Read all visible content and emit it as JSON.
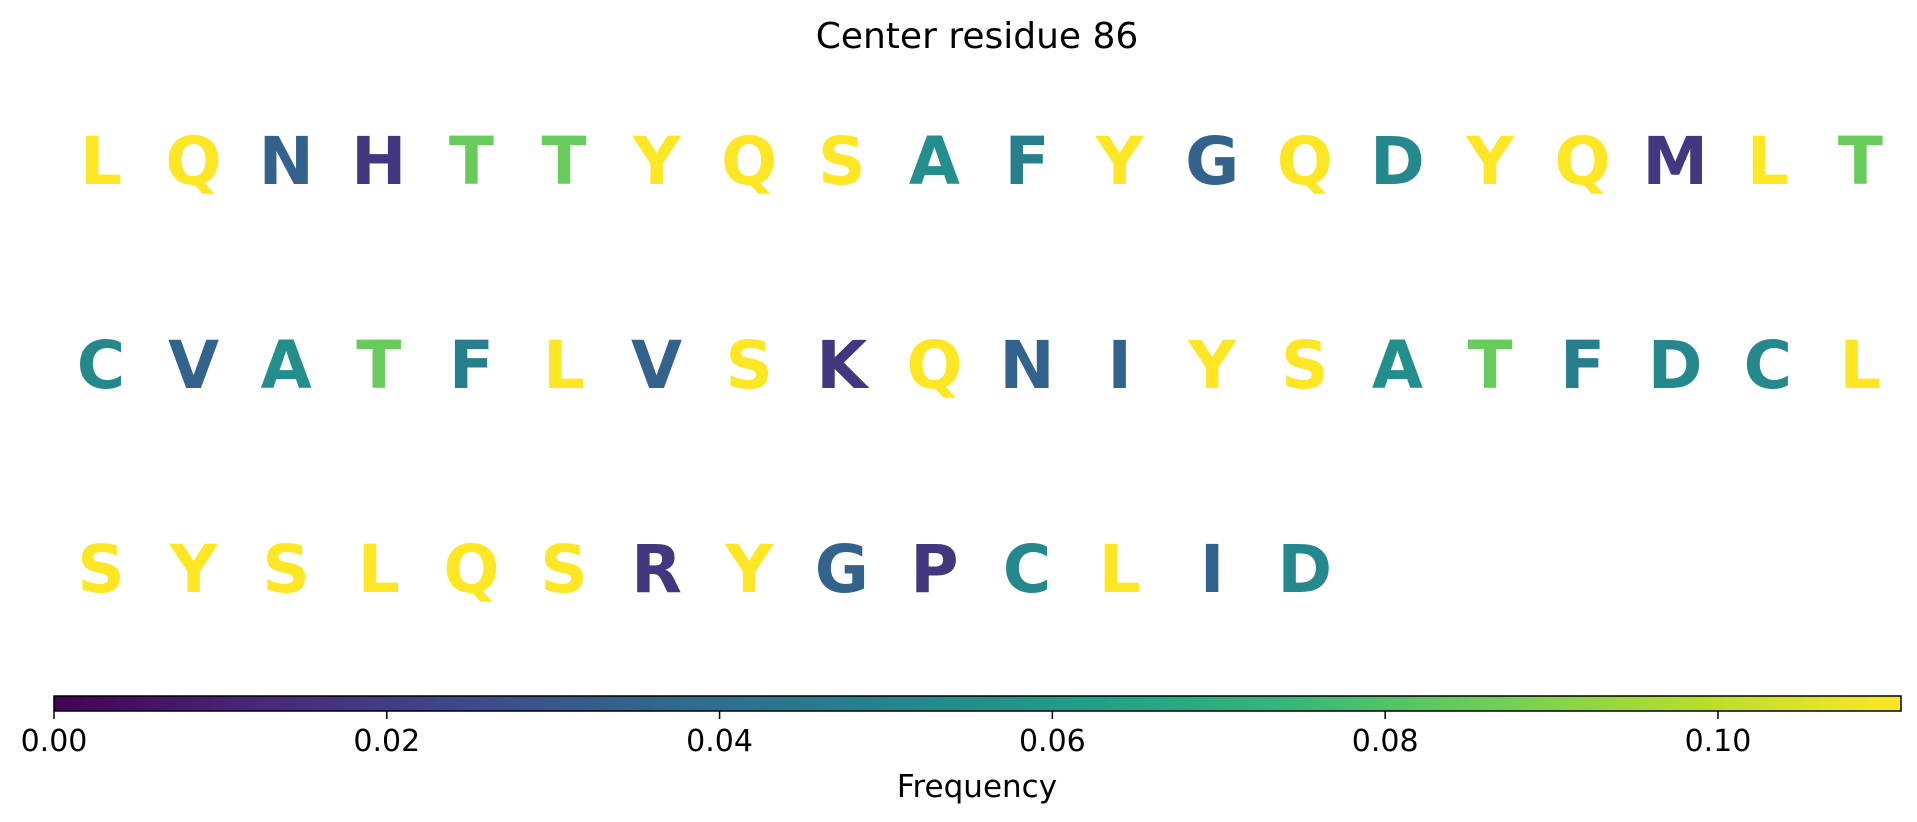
{
  "chart_data": {
    "type": "heatmap",
    "title": "Center residue 86",
    "rows": [
      {
        "residues": [
          "L",
          "Q",
          "N",
          "H",
          "T",
          "T",
          "Y",
          "Q",
          "S",
          "A",
          "F",
          "Y",
          "G",
          "Q",
          "D",
          "Y",
          "Q",
          "M",
          "L",
          "T"
        ],
        "frequency": [
          0.112,
          0.112,
          0.035,
          0.018,
          0.085,
          0.085,
          0.112,
          0.112,
          0.112,
          0.055,
          0.048,
          0.112,
          0.035,
          0.112,
          0.052,
          0.112,
          0.112,
          0.018,
          0.112,
          0.085
        ]
      },
      {
        "residues": [
          "C",
          "V",
          "A",
          "T",
          "F",
          "L",
          "V",
          "S",
          "K",
          "Q",
          "N",
          "I",
          "Y",
          "S",
          "A",
          "T",
          "F",
          "D",
          "C",
          "L"
        ],
        "frequency": [
          0.052,
          0.035,
          0.055,
          0.085,
          0.048,
          0.112,
          0.035,
          0.112,
          0.018,
          0.112,
          0.035,
          0.035,
          0.112,
          0.112,
          0.055,
          0.085,
          0.048,
          0.052,
          0.052,
          0.112
        ]
      },
      {
        "residues": [
          "S",
          "Y",
          "S",
          "L",
          "Q",
          "S",
          "R",
          "Y",
          "G",
          "P",
          "C",
          "L",
          "I",
          "D"
        ],
        "frequency": [
          0.112,
          0.112,
          0.112,
          0.112,
          0.112,
          0.112,
          0.018,
          0.112,
          0.035,
          0.018,
          0.052,
          0.112,
          0.035,
          0.052
        ]
      }
    ],
    "colorbar": {
      "label": "Frequency",
      "min": 0.0,
      "max": 0.111,
      "ticks": [
        "0.00",
        "0.02",
        "0.04",
        "0.06",
        "0.08",
        "0.10"
      ],
      "tick_values": [
        0.0,
        0.02,
        0.04,
        0.06,
        0.08,
        0.1
      ],
      "colormap": "viridis",
      "colormap_stops": [
        "#440154",
        "#482878",
        "#3e4989",
        "#31688e",
        "#26828e",
        "#1f9e89",
        "#35b779",
        "#6ece58",
        "#b5de2b",
        "#fde725"
      ]
    },
    "grid": false,
    "legend": "none"
  }
}
